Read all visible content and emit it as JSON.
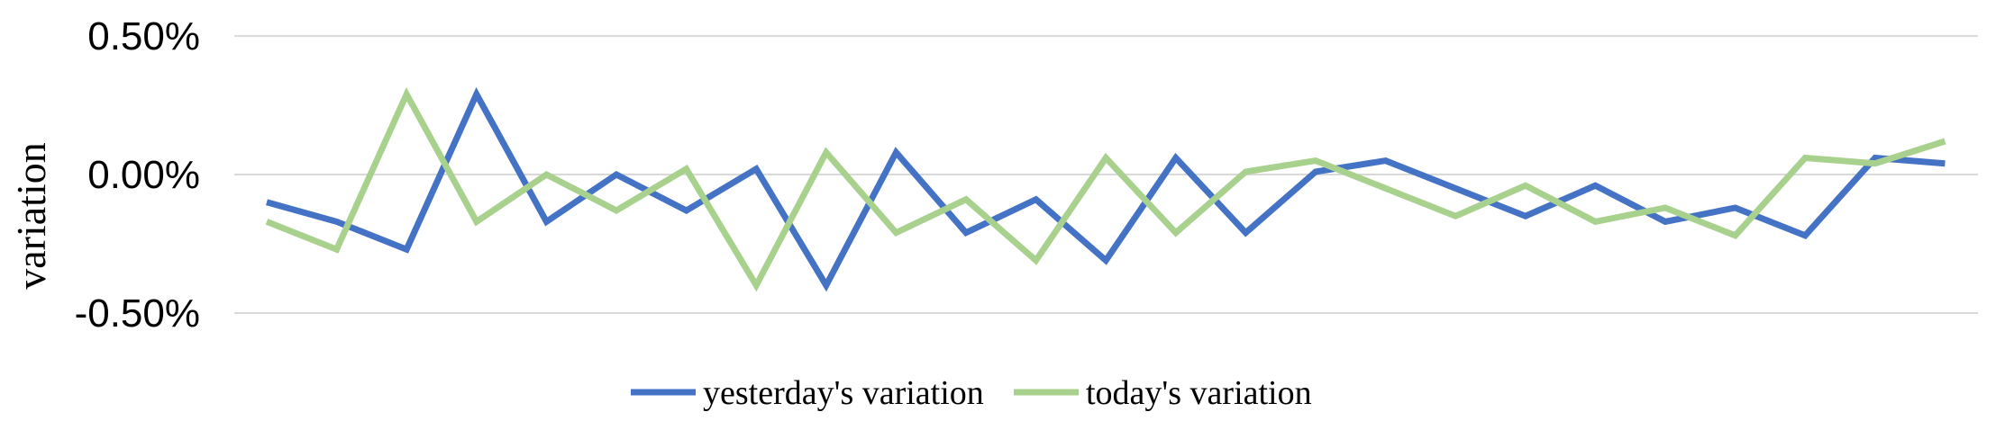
{
  "chart_data": {
    "type": "line",
    "title": "",
    "xlabel": "",
    "ylabel": "variation",
    "ylim": [
      -0.5,
      0.5
    ],
    "yticks": [
      "0.50%",
      "0.00%",
      "-0.50%"
    ],
    "grid": true,
    "legend_position": "bottom",
    "x": [
      1,
      2,
      3,
      4,
      5,
      6,
      7,
      8,
      9,
      10,
      11,
      12,
      13,
      14,
      15,
      16,
      17,
      18,
      19,
      20,
      21,
      22,
      23,
      24,
      25,
      26
    ],
    "series": [
      {
        "name": "yesterday's variation",
        "color": "#4472C4",
        "values": [
          -0.1,
          -0.17,
          -0.27,
          0.29,
          -0.17,
          0.0,
          -0.13,
          0.02,
          -0.4,
          0.08,
          -0.21,
          -0.09,
          -0.31,
          0.06,
          -0.21,
          0.01,
          0.05,
          -0.05,
          -0.15,
          -0.04,
          -0.17,
          -0.12,
          -0.22,
          0.06,
          0.04,
          null
        ]
      },
      {
        "name": "today's variation",
        "color": "#A9D18E",
        "values": [
          -0.17,
          -0.27,
          0.29,
          -0.17,
          0.0,
          -0.13,
          0.02,
          -0.4,
          0.08,
          -0.21,
          -0.09,
          -0.31,
          0.06,
          -0.21,
          0.01,
          0.05,
          -0.05,
          -0.15,
          -0.04,
          -0.17,
          -0.12,
          -0.22,
          0.06,
          0.04,
          0.12,
          null
        ]
      }
    ]
  }
}
